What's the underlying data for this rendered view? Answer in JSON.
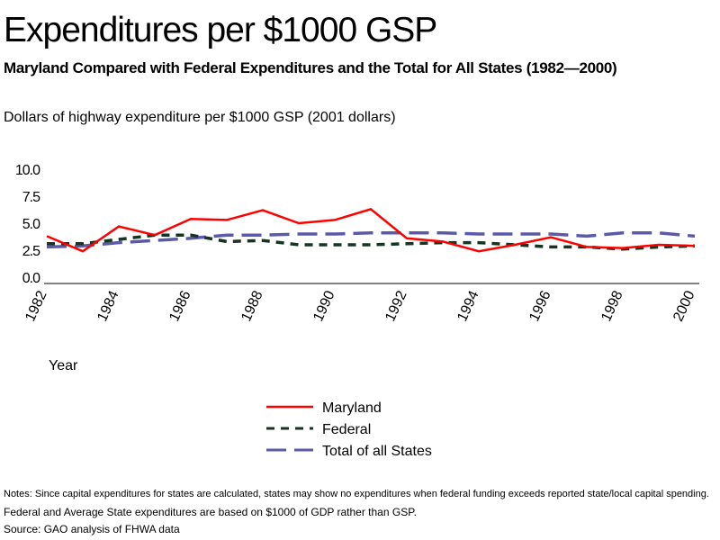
{
  "chart_data": {
    "type": "line",
    "title": "Expenditures per $1000 GSP",
    "subtitle": "Maryland Compared with Federal Expenditures and the Total for All States (1982—2000)",
    "ylabel": "Dollars of highway expenditure per $1000 GSP (2001 dollars)",
    "xlabel": "Year",
    "ylim": [
      0,
      10
    ],
    "yticks": [
      "0.0",
      "2.5",
      "5.0",
      "7.5",
      "10.0"
    ],
    "x": [
      1982,
      1983,
      1984,
      1985,
      1986,
      1987,
      1988,
      1989,
      1990,
      1991,
      1992,
      1993,
      1994,
      1995,
      1996,
      1997,
      1998,
      1999,
      2000
    ],
    "xticks": [
      "1982",
      "1984",
      "1986",
      "1988",
      "1990",
      "1992",
      "1994",
      "1996",
      "1998",
      "2000"
    ],
    "legend_position": "bottom-center",
    "grid": false,
    "series": [
      {
        "name": "Maryland",
        "color": "#ff0000",
        "style": "solid",
        "values": [
          3.8,
          2.4,
          4.7,
          3.9,
          5.4,
          5.3,
          6.2,
          5.0,
          5.3,
          6.3,
          3.6,
          3.3,
          2.4,
          3.0,
          3.7,
          2.8,
          2.7,
          3.0,
          2.9
        ]
      },
      {
        "name": "Federal",
        "color": "#173321",
        "style": "short-dash",
        "values": [
          3.1,
          3.1,
          3.5,
          3.9,
          3.9,
          3.3,
          3.4,
          3.0,
          3.0,
          3.0,
          3.1,
          3.2,
          3.2,
          3.0,
          2.8,
          2.8,
          2.6,
          2.8,
          2.9
        ]
      },
      {
        "name": "Total of all States",
        "color": "#5b5aa8",
        "style": "long-dash",
        "values": [
          2.8,
          2.9,
          3.2,
          3.4,
          3.6,
          3.9,
          3.9,
          4.0,
          4.0,
          4.1,
          4.1,
          4.1,
          4.0,
          4.0,
          4.0,
          3.8,
          4.1,
          4.1,
          3.8
        ]
      }
    ]
  },
  "notes": [
    "Notes: Since capital expenditures for states are calculated, states may show no expenditures when federal funding exceeds reported state/local capital spending.",
    "Federal and Average State expenditures are based on $1000 of GDP rather than GSP.",
    "Source: GAO analysis of FHWA data"
  ]
}
